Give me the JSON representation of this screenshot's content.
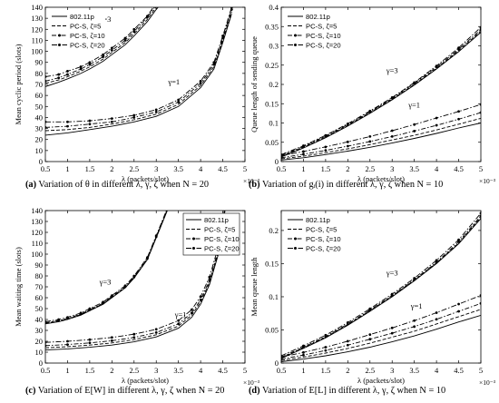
{
  "chart_data": [
    {
      "type": "line",
      "panel": "a",
      "xlabel": "λ (packets/slot)",
      "ylabel": "Mean cyclic period (slots)",
      "xlim": [
        0.5,
        5
      ],
      "ylim": [
        0,
        140
      ],
      "x_ticks": [
        "0.5",
        "1",
        "1.5",
        "2",
        "2.5",
        "3",
        "3.5",
        "4",
        "4.5",
        "5"
      ],
      "y_ticks": [
        "0",
        "10",
        "20",
        "30",
        "40",
        "50",
        "60",
        "70",
        "80",
        "90",
        "100",
        "110",
        "120",
        "130",
        "140"
      ],
      "x_exponent": "×10⁻³",
      "legend": {
        "position": "top-left",
        "entries": [
          "802.11p",
          "PC-S, ζ=5",
          "PC-S, ζ=10",
          "PC-S, ζ=20"
        ]
      },
      "annotations": [
        {
          "text": "γ=3",
          "x": 1.85,
          "y": 127
        },
        {
          "text": "γ=1",
          "x": 3.4,
          "y": 70
        }
      ],
      "groups": [
        {
          "label": "γ=3",
          "x": [
            0.5,
            0.8,
            1.0,
            1.3,
            1.5,
            1.8,
            2.0,
            2.3,
            2.5,
            2.8,
            3.0,
            3.15
          ],
          "series": [
            {
              "name": "802.11p",
              "y": [
                68,
                72,
                75,
                80,
                84,
                91,
                97,
                106,
                114,
                127,
                138,
                145
              ]
            },
            {
              "name": "PC-S, ζ=5",
              "y": [
                71,
                74,
                77,
                82,
                86,
                93,
                99,
                108,
                116,
                129,
                140,
                147
              ]
            },
            {
              "name": "PC-S, ζ=10",
              "y": [
                73,
                76,
                79,
                84,
                88,
                95,
                101,
                110,
                118,
                131,
                142,
                149
              ]
            },
            {
              "name": "PC-S, ζ=20",
              "y": [
                77,
                79,
                82,
                86,
                90,
                97,
                103,
                112,
                120,
                132,
                144,
                151
              ]
            }
          ]
        },
        {
          "label": "γ=1",
          "x": [
            0.5,
            1.0,
            1.5,
            2.0,
            2.5,
            3.0,
            3.5,
            4.0,
            4.3,
            4.5,
            4.7
          ],
          "series": [
            {
              "name": "802.11p",
              "y": [
                24,
                26,
                29,
                32,
                36,
                41,
                50,
                67,
                84,
                108,
                134
              ]
            },
            {
              "name": "PC-S, ζ=5",
              "y": [
                28,
                29,
                31,
                34,
                38,
                43,
                52,
                69,
                86,
                110,
                136
              ]
            },
            {
              "name": "PC-S, ζ=10",
              "y": [
                31,
                32,
                34,
                36,
                40,
                45,
                54,
                71,
                88,
                112,
                138
              ]
            },
            {
              "name": "PC-S, ζ=20",
              "y": [
                36,
                36,
                37,
                39,
                42,
                47,
                56,
                73,
                90,
                114,
                140
              ]
            }
          ]
        }
      ]
    },
    {
      "type": "line",
      "panel": "b",
      "xlabel": "λ (packets/slot)",
      "ylabel": "Queue length of sending queue",
      "xlim": [
        0.5,
        5
      ],
      "ylim": [
        0,
        0.4
      ],
      "x_ticks": [
        "0.5",
        "1",
        "1.5",
        "2",
        "2.5",
        "3",
        "3.5",
        "4",
        "4.5",
        "5"
      ],
      "y_ticks": [
        "0",
        "0.05",
        "0.1",
        "0.15",
        "0.2",
        "0.25",
        "0.3",
        "0.35",
        "0.4"
      ],
      "x_exponent": "×10⁻³",
      "legend": {
        "position": "top-left",
        "entries": [
          "802.11p",
          "PC-S, ζ=5",
          "PC-S, ζ=10",
          "PC-S, ζ=20"
        ]
      },
      "annotations": [
        {
          "text": "γ=3",
          "x": 3.0,
          "y": 0.23
        },
        {
          "text": "γ=1",
          "x": 3.5,
          "y": 0.14
        }
      ],
      "groups": [
        {
          "label": "γ=3",
          "x": [
            0.5,
            1.0,
            1.5,
            2.0,
            2.5,
            3.0,
            3.5,
            4.0,
            4.5,
            5.0
          ],
          "series": [
            {
              "name": "802.11p",
              "y": [
                0.012,
                0.035,
                0.062,
                0.092,
                0.125,
                0.16,
                0.198,
                0.24,
                0.285,
                0.335
              ]
            },
            {
              "name": "PC-S, ζ=5",
              "y": [
                0.014,
                0.037,
                0.064,
                0.094,
                0.127,
                0.162,
                0.2,
                0.242,
                0.288,
                0.338
              ]
            },
            {
              "name": "PC-S, ζ=10",
              "y": [
                0.016,
                0.039,
                0.066,
                0.096,
                0.129,
                0.164,
                0.203,
                0.245,
                0.291,
                0.342
              ]
            },
            {
              "name": "PC-S, ζ=20",
              "y": [
                0.018,
                0.041,
                0.068,
                0.098,
                0.131,
                0.166,
                0.205,
                0.248,
                0.295,
                0.348
              ]
            }
          ]
        },
        {
          "label": "γ=1",
          "x": [
            0.5,
            1.0,
            1.5,
            2.0,
            2.5,
            3.0,
            3.5,
            4.0,
            4.5,
            5.0
          ],
          "series": [
            {
              "name": "802.11p",
              "y": [
                0.004,
                0.01,
                0.018,
                0.027,
                0.037,
                0.048,
                0.06,
                0.073,
                0.087,
                0.1
              ]
            },
            {
              "name": "PC-S, ζ=5",
              "y": [
                0.007,
                0.014,
                0.023,
                0.033,
                0.044,
                0.056,
                0.068,
                0.082,
                0.097,
                0.112
              ]
            },
            {
              "name": "PC-S, ζ=10",
              "y": [
                0.01,
                0.019,
                0.029,
                0.04,
                0.052,
                0.065,
                0.079,
                0.094,
                0.11,
                0.127
              ]
            },
            {
              "name": "PC-S, ζ=20",
              "y": [
                0.015,
                0.026,
                0.038,
                0.051,
                0.065,
                0.08,
                0.096,
                0.113,
                0.13,
                0.148
              ]
            }
          ]
        }
      ]
    },
    {
      "type": "line",
      "panel": "c",
      "xlabel": "λ (packets/slot)",
      "ylabel": "Mean waiting time (slots)",
      "xlim": [
        0.5,
        5
      ],
      "ylim": [
        0,
        140
      ],
      "x_ticks": [
        "0.5",
        "1",
        "1.5",
        "2",
        "2.5",
        "3",
        "3.5",
        "4",
        "4.5",
        "5"
      ],
      "y_ticks": [
        "0",
        "10",
        "20",
        "30",
        "40",
        "50",
        "60",
        "70",
        "80",
        "90",
        "100",
        "110",
        "120",
        "130",
        "140"
      ],
      "x_exponent": "×10⁻³",
      "legend": {
        "position": "top-right",
        "entries": [
          "802.11p",
          "PC-S, ζ=5",
          "PC-S, ζ=10",
          "PC-S, ζ=20"
        ]
      },
      "annotations": [
        {
          "text": "γ=3",
          "x": 1.85,
          "y": 72
        },
        {
          "text": "γ=1",
          "x": 3.55,
          "y": 42
        }
      ],
      "groups": [
        {
          "label": "γ=3",
          "x": [
            0.5,
            0.8,
            1.0,
            1.3,
            1.5,
            1.8,
            2.0,
            2.3,
            2.5,
            2.8,
            3.0,
            3.25,
            3.4
          ],
          "series": [
            {
              "name": "802.11p",
              "y": [
                36,
                38,
                40,
                44,
                48,
                54,
                60,
                69,
                78,
                95,
                115,
                140,
                152
              ]
            },
            {
              "name": "PC-S, ζ=5",
              "y": [
                36.5,
                38.5,
                40.5,
                44.5,
                48.5,
                54.5,
                60.5,
                69.5,
                78.5,
                95.5,
                115.5,
                140.5,
                152.5
              ]
            },
            {
              "name": "PC-S, ζ=10",
              "y": [
                37,
                39,
                41,
                45,
                49,
                55,
                61,
                70,
                79,
                96,
                116,
                141,
                153
              ]
            },
            {
              "name": "PC-S, ζ=20",
              "y": [
                38,
                40,
                42,
                46,
                50,
                56,
                62,
                71,
                80,
                97,
                117,
                142,
                154
              ]
            }
          ]
        },
        {
          "label": "γ=1",
          "x": [
            0.5,
            1.0,
            1.5,
            2.0,
            2.5,
            3.0,
            3.5,
            3.8,
            4.0,
            4.2,
            4.4,
            4.55
          ],
          "series": [
            {
              "name": "802.11p",
              "y": [
                12,
                13,
                14.5,
                16.5,
                19.5,
                24,
                32,
                42,
                54,
                72,
                100,
                140
              ]
            },
            {
              "name": "PC-S, ζ=5",
              "y": [
                14,
                15,
                16.5,
                18.5,
                21.5,
                26,
                34,
                44,
                56,
                74,
                102,
                142
              ]
            },
            {
              "name": "PC-S, ζ=10",
              "y": [
                16,
                17,
                18.5,
                20.5,
                23.5,
                28,
                36,
                46,
                58,
                76,
                104,
                144
              ]
            },
            {
              "name": "PC-S, ζ=20",
              "y": [
                19,
                20,
                21.5,
                23.5,
                26.5,
                31,
                39,
                49,
                61,
                79,
                107,
                147
              ]
            }
          ]
        }
      ]
    },
    {
      "type": "line",
      "panel": "d",
      "xlabel": "λ (packets/slot)",
      "ylabel": "Mean queue length",
      "xlim": [
        0.5,
        5
      ],
      "ylim": [
        0,
        0.23
      ],
      "x_ticks": [
        "0.5",
        "1",
        "1.5",
        "2",
        "2.5",
        "3",
        "3.5",
        "4",
        "4.5",
        "5"
      ],
      "y_ticks": [
        "0",
        "0.05",
        "0.1",
        "0.15",
        "0.2"
      ],
      "x_exponent": "×10⁻³",
      "legend": {
        "position": "top-left",
        "entries": [
          "802.11p",
          "PC-S, ζ=5",
          "PC-S, ζ=10",
          "PC-S, ζ=20"
        ]
      },
      "annotations": [
        {
          "text": "γ=3",
          "x": 3.0,
          "y": 0.132
        },
        {
          "text": "γ=1",
          "x": 3.55,
          "y": 0.082
        }
      ],
      "groups": [
        {
          "label": "γ=3",
          "x": [
            0.5,
            1.0,
            1.5,
            2.0,
            2.5,
            3.0,
            3.5,
            4.0,
            4.5,
            5.0
          ],
          "series": [
            {
              "name": "802.11p",
              "y": [
                0.007,
                0.022,
                0.038,
                0.057,
                0.078,
                0.1,
                0.124,
                0.15,
                0.18,
                0.218
              ]
            },
            {
              "name": "PC-S, ζ=5",
              "y": [
                0.008,
                0.023,
                0.039,
                0.058,
                0.079,
                0.101,
                0.125,
                0.151,
                0.181,
                0.22
              ]
            },
            {
              "name": "PC-S, ζ=10",
              "y": [
                0.009,
                0.024,
                0.04,
                0.059,
                0.08,
                0.102,
                0.126,
                0.152,
                0.183,
                0.222
              ]
            },
            {
              "name": "PC-S, ζ=20",
              "y": [
                0.011,
                0.026,
                0.042,
                0.061,
                0.082,
                0.104,
                0.128,
                0.155,
                0.186,
                0.226
              ]
            }
          ]
        },
        {
          "label": "γ=1",
          "x": [
            0.5,
            1.0,
            1.5,
            2.0,
            2.5,
            3.0,
            3.5,
            4.0,
            4.5,
            5.0
          ],
          "series": [
            {
              "name": "802.11p",
              "y": [
                0.002,
                0.006,
                0.011,
                0.017,
                0.024,
                0.032,
                0.041,
                0.051,
                0.062,
                0.072
              ]
            },
            {
              "name": "PC-S, ζ=5",
              "y": [
                0.004,
                0.009,
                0.015,
                0.022,
                0.03,
                0.039,
                0.048,
                0.059,
                0.07,
                0.081
              ]
            },
            {
              "name": "PC-S, ζ=10",
              "y": [
                0.006,
                0.012,
                0.019,
                0.027,
                0.036,
                0.045,
                0.055,
                0.066,
                0.078,
                0.09
              ]
            },
            {
              "name": "PC-S, ζ=20",
              "y": [
                0.009,
                0.016,
                0.024,
                0.033,
                0.043,
                0.053,
                0.064,
                0.076,
                0.089,
                0.102
              ]
            }
          ]
        }
      ]
    }
  ],
  "captions": {
    "a": {
      "tag": "(a)",
      "text": "Variation of θ in different λ, γ, ζ when N = 20"
    },
    "b": {
      "tag": "(b)",
      "text": "Variation of gᵢ(i) in different λ, γ, ζ when N = 10"
    },
    "c": {
      "tag": "(c)",
      "text": "Variation of E[W] in different λ, γ, ζ when N = 20"
    },
    "d": {
      "tag": "(d)",
      "text": "Variation of E[L] in different λ, γ, ζ when N = 10"
    }
  },
  "styles": {
    "802.11p": {
      "dash": "none",
      "marker": "none"
    },
    "PC-S, ζ=5": {
      "dash": "4 2",
      "marker": "none"
    },
    "PC-S, ζ=10": {
      "dash": "5 2 1.5 2",
      "marker": "dot"
    },
    "PC-S, ζ=20": {
      "dash": "6 2 1.5 2",
      "marker": "dot"
    }
  },
  "colors": {
    "line": "#000000",
    "axis": "#000000",
    "background": "#ffffff"
  }
}
